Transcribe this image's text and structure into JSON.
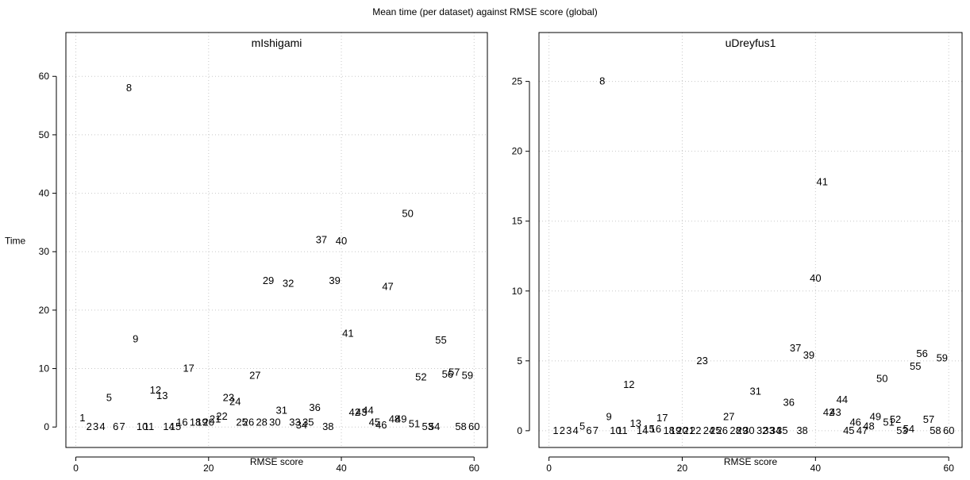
{
  "figure_title": "Mean time (per dataset) against RMSE score (global)",
  "chart_data": [
    {
      "type": "scatter",
      "title": "mIshigami",
      "xlabel": "RMSE score",
      "ylabel": "Time",
      "xlim": [
        -1.5,
        62
      ],
      "ylim": [
        -3.5,
        67.5
      ],
      "xticks": [
        0,
        20,
        40,
        60
      ],
      "yticks": [
        0,
        10,
        20,
        30,
        40,
        50,
        60
      ],
      "grid": true,
      "points": [
        {
          "label": "1",
          "x": 1,
          "y": 1.5
        },
        {
          "label": "2",
          "x": 2,
          "y": 0
        },
        {
          "label": "3",
          "x": 3,
          "y": 0
        },
        {
          "label": "4",
          "x": 4,
          "y": 0
        },
        {
          "label": "5",
          "x": 5,
          "y": 5
        },
        {
          "label": "6",
          "x": 6,
          "y": 0
        },
        {
          "label": "7",
          "x": 7,
          "y": 0
        },
        {
          "label": "8",
          "x": 8,
          "y": 58
        },
        {
          "label": "9",
          "x": 9,
          "y": 15
        },
        {
          "label": "10",
          "x": 10,
          "y": 0
        },
        {
          "label": "11",
          "x": 11,
          "y": 0
        },
        {
          "label": "12",
          "x": 12,
          "y": 6.3
        },
        {
          "label": "13",
          "x": 13,
          "y": 5.3
        },
        {
          "label": "14",
          "x": 14,
          "y": 0
        },
        {
          "label": "15",
          "x": 15,
          "y": 0
        },
        {
          "label": "16",
          "x": 16,
          "y": 0.8
        },
        {
          "label": "17",
          "x": 17,
          "y": 10
        },
        {
          "label": "18",
          "x": 18,
          "y": 0.8
        },
        {
          "label": "19",
          "x": 19,
          "y": 0.8
        },
        {
          "label": "20",
          "x": 20,
          "y": 0.8
        },
        {
          "label": "21",
          "x": 21,
          "y": 1.3
        },
        {
          "label": "22",
          "x": 22,
          "y": 1.8
        },
        {
          "label": "23",
          "x": 23,
          "y": 5
        },
        {
          "label": "24",
          "x": 24,
          "y": 4.3
        },
        {
          "label": "25",
          "x": 25,
          "y": 0.8
        },
        {
          "label": "26",
          "x": 26,
          "y": 0.8
        },
        {
          "label": "27",
          "x": 27,
          "y": 8.8
        },
        {
          "label": "28",
          "x": 28,
          "y": 0.8
        },
        {
          "label": "29",
          "x": 29,
          "y": 25
        },
        {
          "label": "30",
          "x": 30,
          "y": 0.8
        },
        {
          "label": "31",
          "x": 31,
          "y": 2.8
        },
        {
          "label": "32",
          "x": 32,
          "y": 24.5
        },
        {
          "label": "33",
          "x": 33,
          "y": 0.8
        },
        {
          "label": "34",
          "x": 34,
          "y": 0.3
        },
        {
          "label": "35",
          "x": 35,
          "y": 0.8
        },
        {
          "label": "36",
          "x": 36,
          "y": 3.3
        },
        {
          "label": "37",
          "x": 37,
          "y": 32
        },
        {
          "label": "38",
          "x": 38,
          "y": 0
        },
        {
          "label": "39",
          "x": 39,
          "y": 25
        },
        {
          "label": "40",
          "x": 40,
          "y": 31.8
        },
        {
          "label": "41",
          "x": 41,
          "y": 16
        },
        {
          "label": "42",
          "x": 42,
          "y": 2.5
        },
        {
          "label": "43",
          "x": 43,
          "y": 2.5
        },
        {
          "label": "44",
          "x": 44,
          "y": 2.8
        },
        {
          "label": "45",
          "x": 45,
          "y": 0.8
        },
        {
          "label": "46",
          "x": 46,
          "y": 0.3
        },
        {
          "label": "47",
          "x": 47,
          "y": 24
        },
        {
          "label": "48",
          "x": 48,
          "y": 1.3
        },
        {
          "label": "49",
          "x": 49,
          "y": 1.3
        },
        {
          "label": "50",
          "x": 50,
          "y": 36.5
        },
        {
          "label": "51",
          "x": 51,
          "y": 0.5
        },
        {
          "label": "52",
          "x": 52,
          "y": 8.5
        },
        {
          "label": "53",
          "x": 53,
          "y": 0
        },
        {
          "label": "54",
          "x": 54,
          "y": 0
        },
        {
          "label": "55",
          "x": 55,
          "y": 14.8
        },
        {
          "label": "56",
          "x": 56,
          "y": 9
        },
        {
          "label": "57",
          "x": 57,
          "y": 9.3
        },
        {
          "label": "58",
          "x": 58,
          "y": 0
        },
        {
          "label": "59",
          "x": 59,
          "y": 8.8
        },
        {
          "label": "60",
          "x": 60,
          "y": 0
        }
      ]
    },
    {
      "type": "scatter",
      "title": "uDreyfus1",
      "xlabel": "RMSE score",
      "ylabel": "",
      "xlim": [
        -1.5,
        62
      ],
      "ylim": [
        -1.2,
        28.5
      ],
      "xticks": [
        0,
        20,
        40,
        60
      ],
      "yticks": [
        0,
        5,
        10,
        15,
        20,
        25
      ],
      "grid": true,
      "points": [
        {
          "label": "1",
          "x": 1,
          "y": 0
        },
        {
          "label": "2",
          "x": 2,
          "y": 0
        },
        {
          "label": "3",
          "x": 3,
          "y": 0
        },
        {
          "label": "4",
          "x": 4,
          "y": 0
        },
        {
          "label": "5",
          "x": 5,
          "y": 0.3
        },
        {
          "label": "6",
          "x": 6,
          "y": 0
        },
        {
          "label": "7",
          "x": 7,
          "y": 0
        },
        {
          "label": "8",
          "x": 8,
          "y": 25
        },
        {
          "label": "9",
          "x": 9,
          "y": 1
        },
        {
          "label": "10",
          "x": 10,
          "y": 0
        },
        {
          "label": "11",
          "x": 11,
          "y": 0
        },
        {
          "label": "12",
          "x": 12,
          "y": 3.3
        },
        {
          "label": "13",
          "x": 13,
          "y": 0.5
        },
        {
          "label": "14",
          "x": 14,
          "y": 0
        },
        {
          "label": "15",
          "x": 15,
          "y": 0.1
        },
        {
          "label": "16",
          "x": 16,
          "y": 0.1
        },
        {
          "label": "17",
          "x": 17,
          "y": 0.9
        },
        {
          "label": "18",
          "x": 18,
          "y": 0
        },
        {
          "label": "19",
          "x": 19,
          "y": 0
        },
        {
          "label": "20",
          "x": 20,
          "y": 0
        },
        {
          "label": "21",
          "x": 21,
          "y": 0
        },
        {
          "label": "22",
          "x": 22,
          "y": 0
        },
        {
          "label": "23",
          "x": 23,
          "y": 5
        },
        {
          "label": "24",
          "x": 24,
          "y": 0
        },
        {
          "label": "25",
          "x": 25,
          "y": 0
        },
        {
          "label": "26",
          "x": 26,
          "y": 0
        },
        {
          "label": "27",
          "x": 27,
          "y": 1
        },
        {
          "label": "28",
          "x": 28,
          "y": 0
        },
        {
          "label": "29",
          "x": 29,
          "y": 0
        },
        {
          "label": "30",
          "x": 30,
          "y": 0
        },
        {
          "label": "31",
          "x": 31,
          "y": 2.8
        },
        {
          "label": "32",
          "x": 32,
          "y": 0
        },
        {
          "label": "33",
          "x": 33,
          "y": 0
        },
        {
          "label": "34",
          "x": 34,
          "y": 0
        },
        {
          "label": "35",
          "x": 35,
          "y": 0
        },
        {
          "label": "36",
          "x": 36,
          "y": 2
        },
        {
          "label": "37",
          "x": 37,
          "y": 5.9
        },
        {
          "label": "38",
          "x": 38,
          "y": 0
        },
        {
          "label": "39",
          "x": 39,
          "y": 5.4
        },
        {
          "label": "40",
          "x": 40,
          "y": 10.9
        },
        {
          "label": "41",
          "x": 41,
          "y": 17.8
        },
        {
          "label": "42",
          "x": 42,
          "y": 1.3
        },
        {
          "label": "43",
          "x": 43,
          "y": 1.3
        },
        {
          "label": "44",
          "x": 44,
          "y": 2.2
        },
        {
          "label": "45",
          "x": 45,
          "y": 0
        },
        {
          "label": "46",
          "x": 46,
          "y": 0.6
        },
        {
          "label": "47",
          "x": 47,
          "y": 0
        },
        {
          "label": "48",
          "x": 48,
          "y": 0.3
        },
        {
          "label": "49",
          "x": 49,
          "y": 1
        },
        {
          "label": "50",
          "x": 50,
          "y": 3.7
        },
        {
          "label": "51",
          "x": 51,
          "y": 0.6
        },
        {
          "label": "52",
          "x": 52,
          "y": 0.8
        },
        {
          "label": "53",
          "x": 53,
          "y": 0
        },
        {
          "label": "54",
          "x": 54,
          "y": 0.1
        },
        {
          "label": "55",
          "x": 55,
          "y": 4.6
        },
        {
          "label": "56",
          "x": 56,
          "y": 5.5
        },
        {
          "label": "57",
          "x": 57,
          "y": 0.8
        },
        {
          "label": "58",
          "x": 58,
          "y": 0
        },
        {
          "label": "59",
          "x": 59,
          "y": 5.2
        },
        {
          "label": "60",
          "x": 60,
          "y": 0
        }
      ]
    }
  ]
}
